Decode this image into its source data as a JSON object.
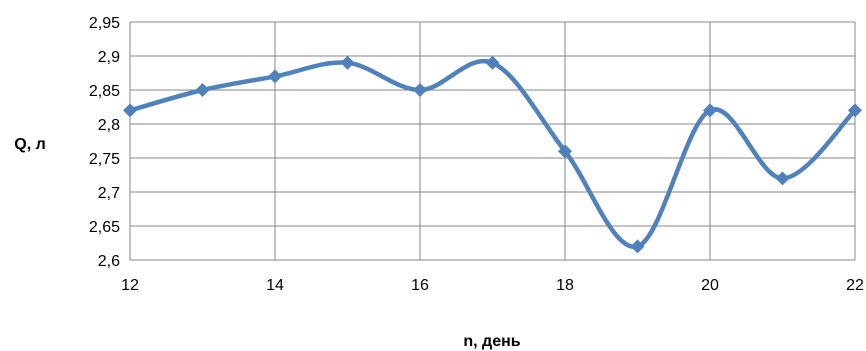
{
  "chart_data": {
    "type": "line",
    "xlabel": "n, день",
    "ylabel": "Q, л",
    "xlim": [
      12,
      22
    ],
    "ylim": [
      2.6,
      2.95
    ],
    "x_ticks": [
      "12",
      "14",
      "16",
      "18",
      "20",
      "22"
    ],
    "y_ticks": [
      "2,6",
      "2,65",
      "2,7",
      "2,75",
      "2,8",
      "2,85",
      "2,9",
      "2,95"
    ],
    "grid": true,
    "smooth": true,
    "series": [
      {
        "x": [
          12,
          13,
          14,
          15,
          16,
          17,
          18,
          19,
          20,
          21,
          22
        ],
        "values": [
          2.82,
          2.85,
          2.87,
          2.89,
          2.85,
          2.89,
          2.76,
          2.62,
          2.82,
          2.72,
          2.82
        ],
        "color": "#4f81bd",
        "marker": "diamond"
      }
    ]
  }
}
